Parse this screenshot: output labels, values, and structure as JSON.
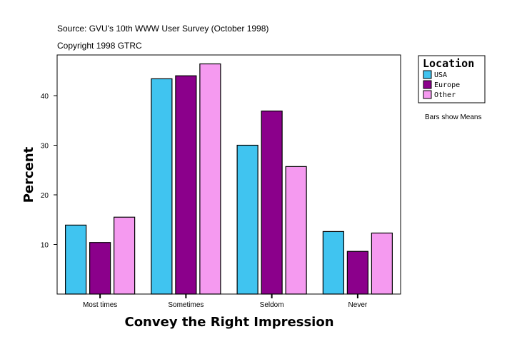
{
  "chart_data": {
    "type": "bar",
    "title": "Source: GVU's 10th WWW User Survey (October 1998)",
    "subtitle": "Copyright 1998 GTRC",
    "xlabel": "Convey the Right Impression",
    "ylabel": "Percent",
    "categories": [
      "Most times",
      "Sometimes",
      "Seldom",
      "Never"
    ],
    "series": [
      {
        "name": "USA",
        "color": "#40C4F0",
        "values": [
          13.9,
          43.4,
          30.0,
          12.6
        ]
      },
      {
        "name": "Europe",
        "color": "#8B008B",
        "values": [
          10.4,
          44.0,
          36.9,
          8.6
        ]
      },
      {
        "name": "Other",
        "color": "#F59AF0",
        "values": [
          15.5,
          46.4,
          25.7,
          12.3
        ]
      }
    ],
    "ylim": [
      0,
      48.2
    ],
    "yticks": [
      10,
      20,
      30,
      40
    ],
    "grid": false,
    "legend": {
      "title": "Location",
      "placement": "right"
    },
    "note": "Bars show Means"
  }
}
